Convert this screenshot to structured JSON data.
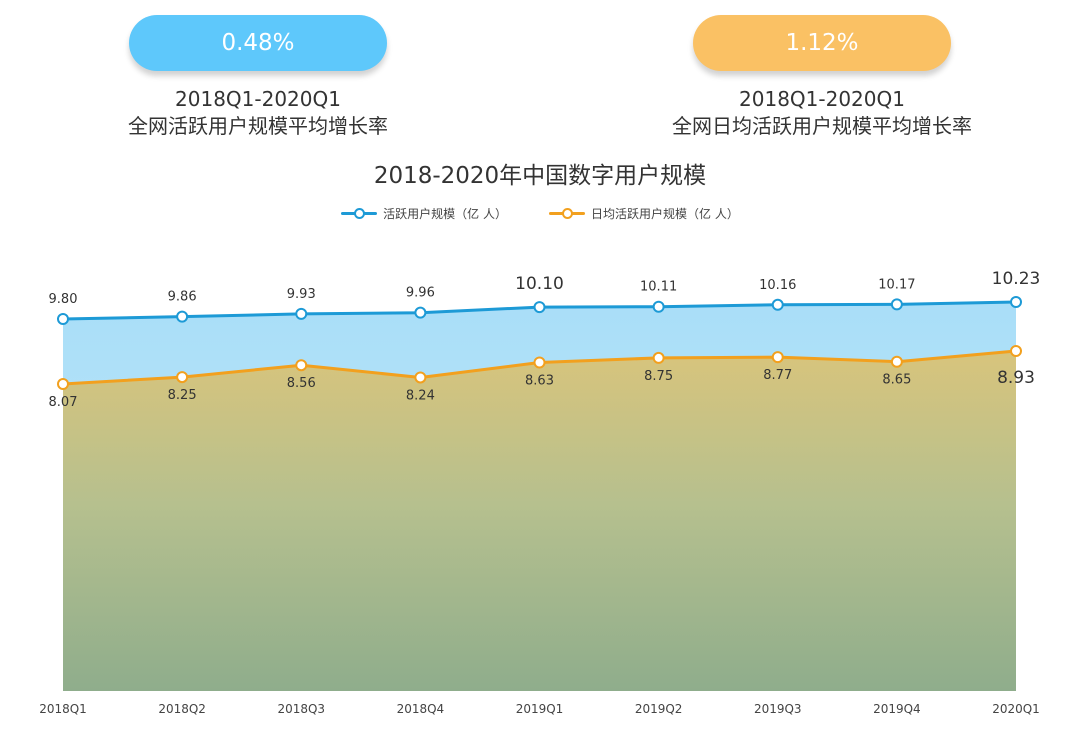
{
  "stats": [
    {
      "value": "0.48%",
      "period": "2018Q1-2020Q1",
      "label": "全网活跃用户规模平均增长率",
      "color": "#5ec8fb"
    },
    {
      "value": "1.12%",
      "period": "2018Q1-2020Q1",
      "label": "全网日均活跃用户规模平均增长率",
      "color": "#fac164"
    }
  ],
  "chart_data": {
    "type": "area",
    "title": "2018-2020年中国数字用户规模",
    "categories": [
      "2018Q1",
      "2018Q2",
      "2018Q3",
      "2018Q4",
      "2019Q1",
      "2019Q2",
      "2019Q3",
      "2019Q4",
      "2020Q1"
    ],
    "series": [
      {
        "name": "活跃用户规模（亿 人）",
        "color": "#1d9ad6",
        "values": [
          9.8,
          9.86,
          9.93,
          9.96,
          10.1,
          10.11,
          10.16,
          10.17,
          10.23
        ]
      },
      {
        "name": "日均活跃用户规模（亿 人）",
        "color": "#f2a01e",
        "values": [
          8.07,
          8.25,
          8.56,
          8.24,
          8.63,
          8.75,
          8.77,
          8.65,
          8.93
        ]
      }
    ],
    "legend_position": "top-center",
    "grid": false
  }
}
